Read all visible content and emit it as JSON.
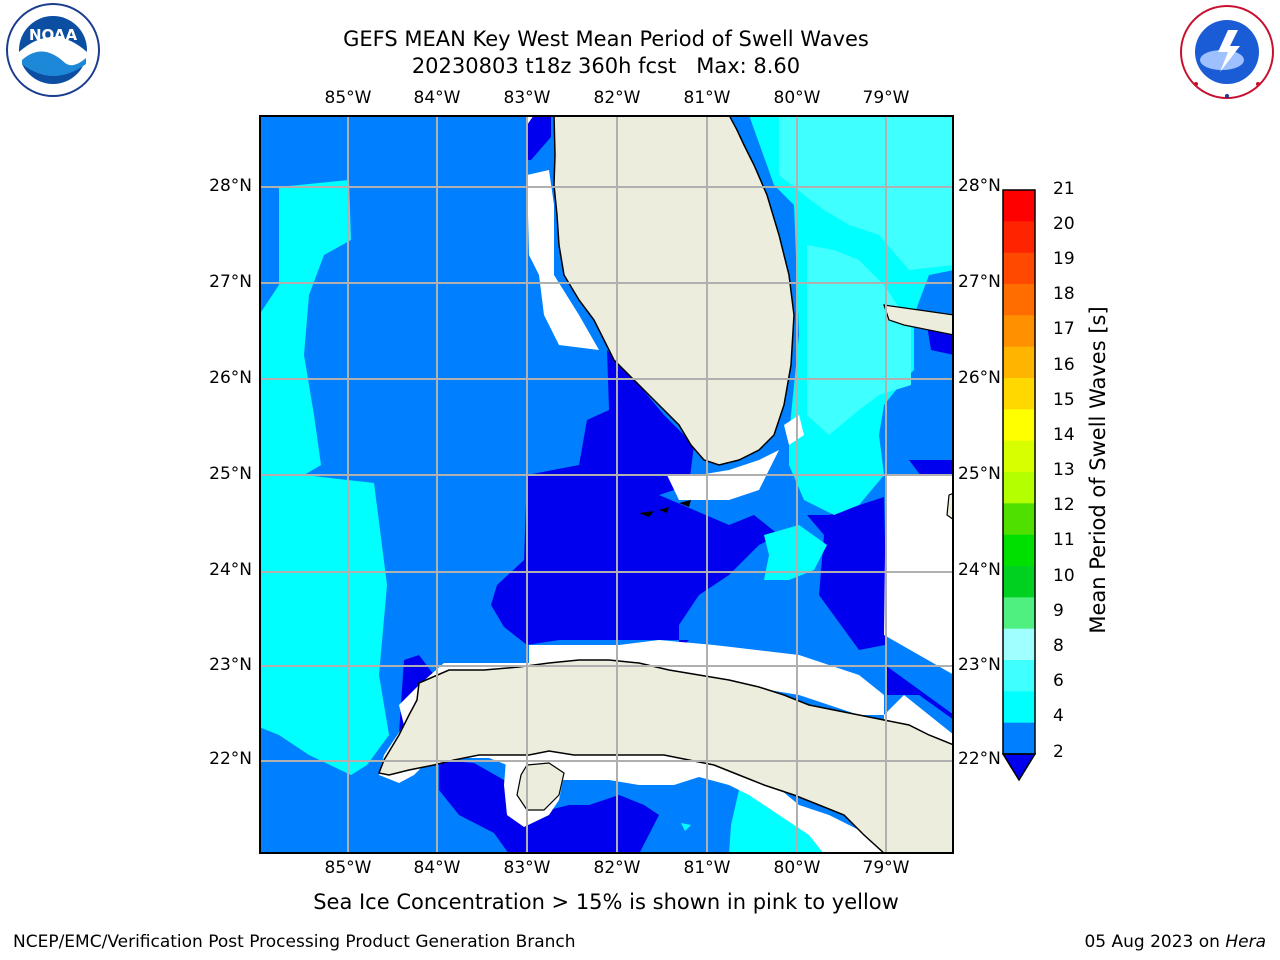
{
  "header": {
    "title_line1": "GEFS MEAN Key West Mean Period of Swell Waves",
    "title_line2": "20230803 t18z 360h fcst   Max: 8.60"
  },
  "logos": {
    "noaa": {
      "label": "NOAA",
      "ring_text": "NATIONAL OCEANIC AND ATMOSPHERIC ADMINISTRATION · U.S. DEPARTMENT OF COMMERCE"
    },
    "nws": {
      "ring_text": "NATIONAL WEATHER SERVICE"
    }
  },
  "map": {
    "lon_labels": [
      "85°W",
      "84°W",
      "83°W",
      "82°W",
      "81°W",
      "80°W",
      "79°W"
    ],
    "lat_labels": [
      "28°N",
      "27°N",
      "26°N",
      "25°N",
      "24°N",
      "23°N",
      "22°N"
    ],
    "lat_labels_right": [
      "28°N",
      "27°N",
      "26°N",
      "25°N",
      "24°N",
      "23°N",
      "22°N"
    ],
    "colors": {
      "band_2_4": "#0080ff",
      "band_below_2": "#0000ee",
      "band_4_6": "#00ffff",
      "band_6_8": "#40ffff",
      "land": "#ededde",
      "no_data": "#ffffff",
      "grid": "#b0b0b0"
    }
  },
  "colorbar": {
    "title": "Mean Period of Swell Waves [s]",
    "ticks": [
      "21",
      "20",
      "19",
      "18",
      "17",
      "16",
      "15",
      "14",
      "13",
      "12",
      "11",
      "10",
      "9",
      "8",
      "6",
      "4",
      "2"
    ],
    "colors_top_to_bottom": [
      "#ff0000",
      "#ff2400",
      "#ff4800",
      "#ff6c00",
      "#ff9000",
      "#ffb400",
      "#ffd800",
      "#ffff00",
      "#d8ff00",
      "#b4ff00",
      "#50e000",
      "#00e000",
      "#00d020",
      "#50f080",
      "#a0ffff",
      "#40ffff",
      "#00ffff",
      "#0080ff"
    ],
    "extend_color": "#0000ee"
  },
  "footer": {
    "note": "Sea Ice Concentration > 15% is shown in pink to yellow",
    "left": "NCEP/EMC/Verification Post Processing Product Generation Branch",
    "date": "05 Aug 2023 on",
    "machine": "Hera"
  }
}
